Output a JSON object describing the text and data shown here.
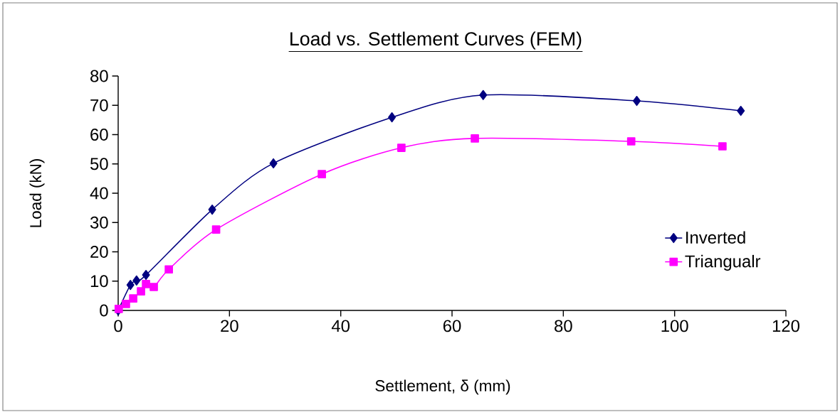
{
  "chart_data": {
    "type": "line",
    "title": "Load vs. Settlement Curves (FEM)",
    "xlabel": "Settlement, δ (mm)",
    "ylabel": "Load (kN)",
    "xlim": [
      0,
      120
    ],
    "xticks": [
      0,
      20,
      40,
      60,
      80,
      100,
      120
    ],
    "ylim": [
      0,
      80
    ],
    "yticks": [
      0,
      10,
      20,
      30,
      40,
      50,
      60,
      70,
      80
    ],
    "grid": false,
    "legend": "bottom right",
    "line_style": "solid",
    "series": [
      {
        "name": "Inverted",
        "color": "#000080",
        "marker": "diamond",
        "x": [
          0,
          2.2,
          3.3,
          5,
          16.9,
          27.9,
          49.2,
          65.6,
          93.2,
          111.9
        ],
        "values": [
          0,
          8.7,
          10.2,
          12.1,
          34.4,
          50.2,
          65.9,
          73.5,
          71.5,
          68.1
        ]
      },
      {
        "name": "Triangualr",
        "color": "#ff00ff",
        "marker": "square",
        "x": [
          0.1,
          1.4,
          2.7,
          4.1,
          5,
          6.4,
          9.1,
          17.6,
          36.6,
          50.9,
          64.1,
          92.2,
          108.6
        ],
        "values": [
          0.5,
          2.2,
          4.1,
          6.5,
          9,
          8,
          14,
          27.6,
          46.5,
          55.5,
          58.7,
          57.7,
          56
        ]
      }
    ]
  }
}
